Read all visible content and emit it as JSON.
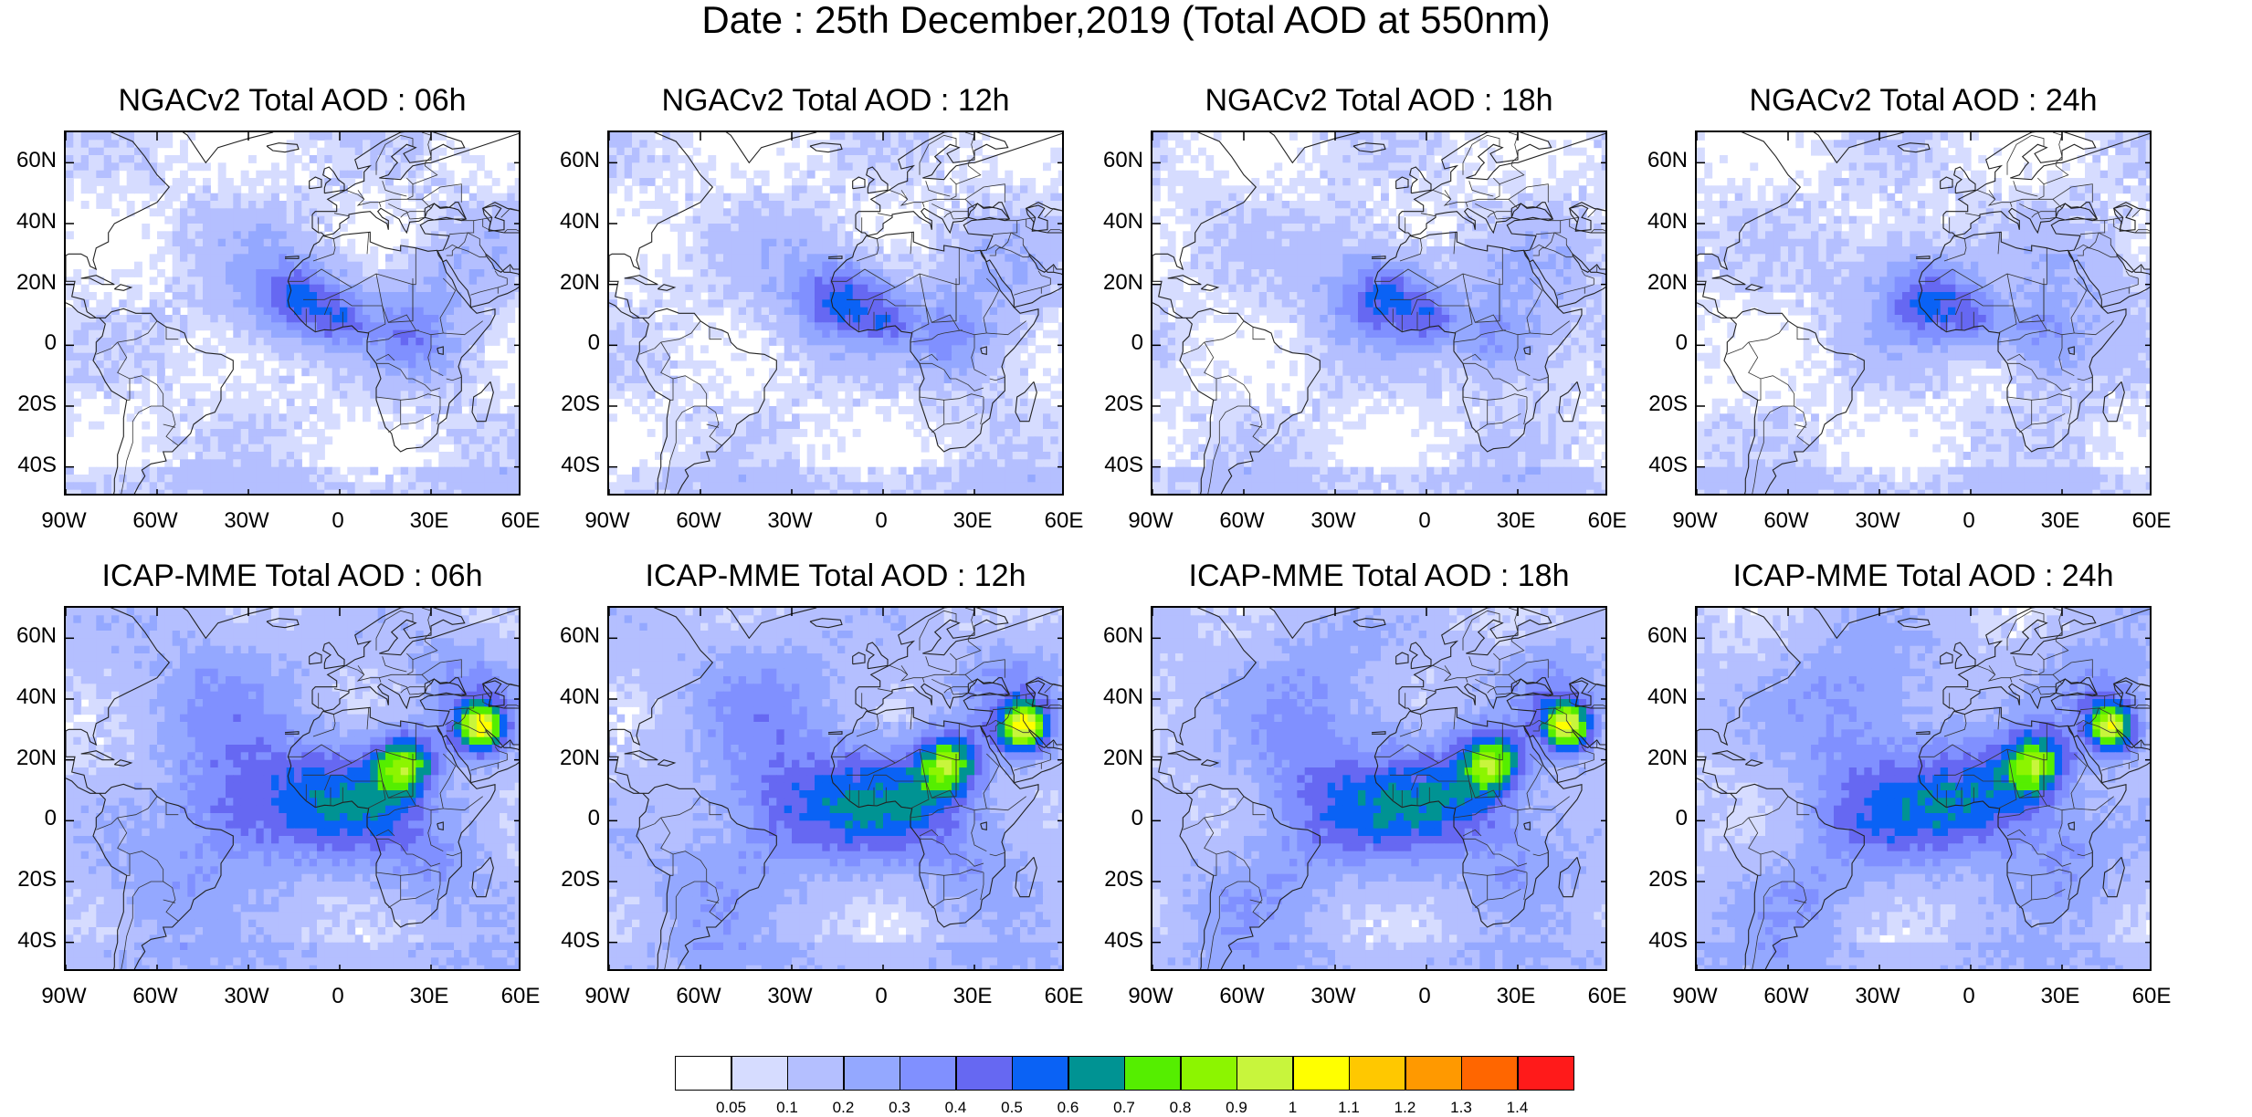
{
  "title": "Date : 25th December,2019 (Total AOD at 550nm)",
  "panels": [
    {
      "title": "NGACv2 Total AOD : 06h",
      "model": "NGACv2",
      "hour": 6
    },
    {
      "title": "NGACv2 Total AOD : 12h",
      "model": "NGACv2",
      "hour": 12
    },
    {
      "title": "NGACv2 Total AOD : 18h",
      "model": "NGACv2",
      "hour": 18
    },
    {
      "title": "NGACv2 Total AOD : 24h",
      "model": "NGACv2",
      "hour": 24
    },
    {
      "title": "ICAP-MME Total AOD : 06h",
      "model": "ICAP-MME",
      "hour": 6
    },
    {
      "title": "ICAP-MME Total AOD : 12h",
      "model": "ICAP-MME",
      "hour": 12
    },
    {
      "title": "ICAP-MME Total AOD : 18h",
      "model": "ICAP-MME",
      "hour": 18
    },
    {
      "title": "ICAP-MME Total AOD : 24h",
      "model": "ICAP-MME",
      "hour": 24
    }
  ],
  "lat_ticks": [
    "60N",
    "40N",
    "20N",
    "0",
    "20S",
    "40S"
  ],
  "lat_tick_values": [
    60,
    40,
    20,
    0,
    -20,
    -40
  ],
  "lon_ticks": [
    "90W",
    "60W",
    "30W",
    "0",
    "30E",
    "60E"
  ],
  "lon_tick_values": [
    -90,
    -60,
    -30,
    0,
    30,
    60
  ],
  "map_extent": {
    "lon": [
      -90,
      60
    ],
    "lat": [
      -50,
      70
    ]
  },
  "colorbar": {
    "labels": [
      "0.05",
      "0.1",
      "0.2",
      "0.3",
      "0.4",
      "0.5",
      "0.6",
      "0.7",
      "0.8",
      "0.9",
      "1",
      "1.1",
      "1.2",
      "1.3",
      "1.4"
    ],
    "colors": [
      "#ffffff",
      "#d6dcff",
      "#b4bfff",
      "#94a8ff",
      "#8090ff",
      "#6668f2",
      "#0a62f5",
      "#009393",
      "#55ee00",
      "#8cf500",
      "#c8f53c",
      "#ffff00",
      "#ffc800",
      "#ff9900",
      "#ff6600",
      "#ff1a1a"
    ]
  }
}
